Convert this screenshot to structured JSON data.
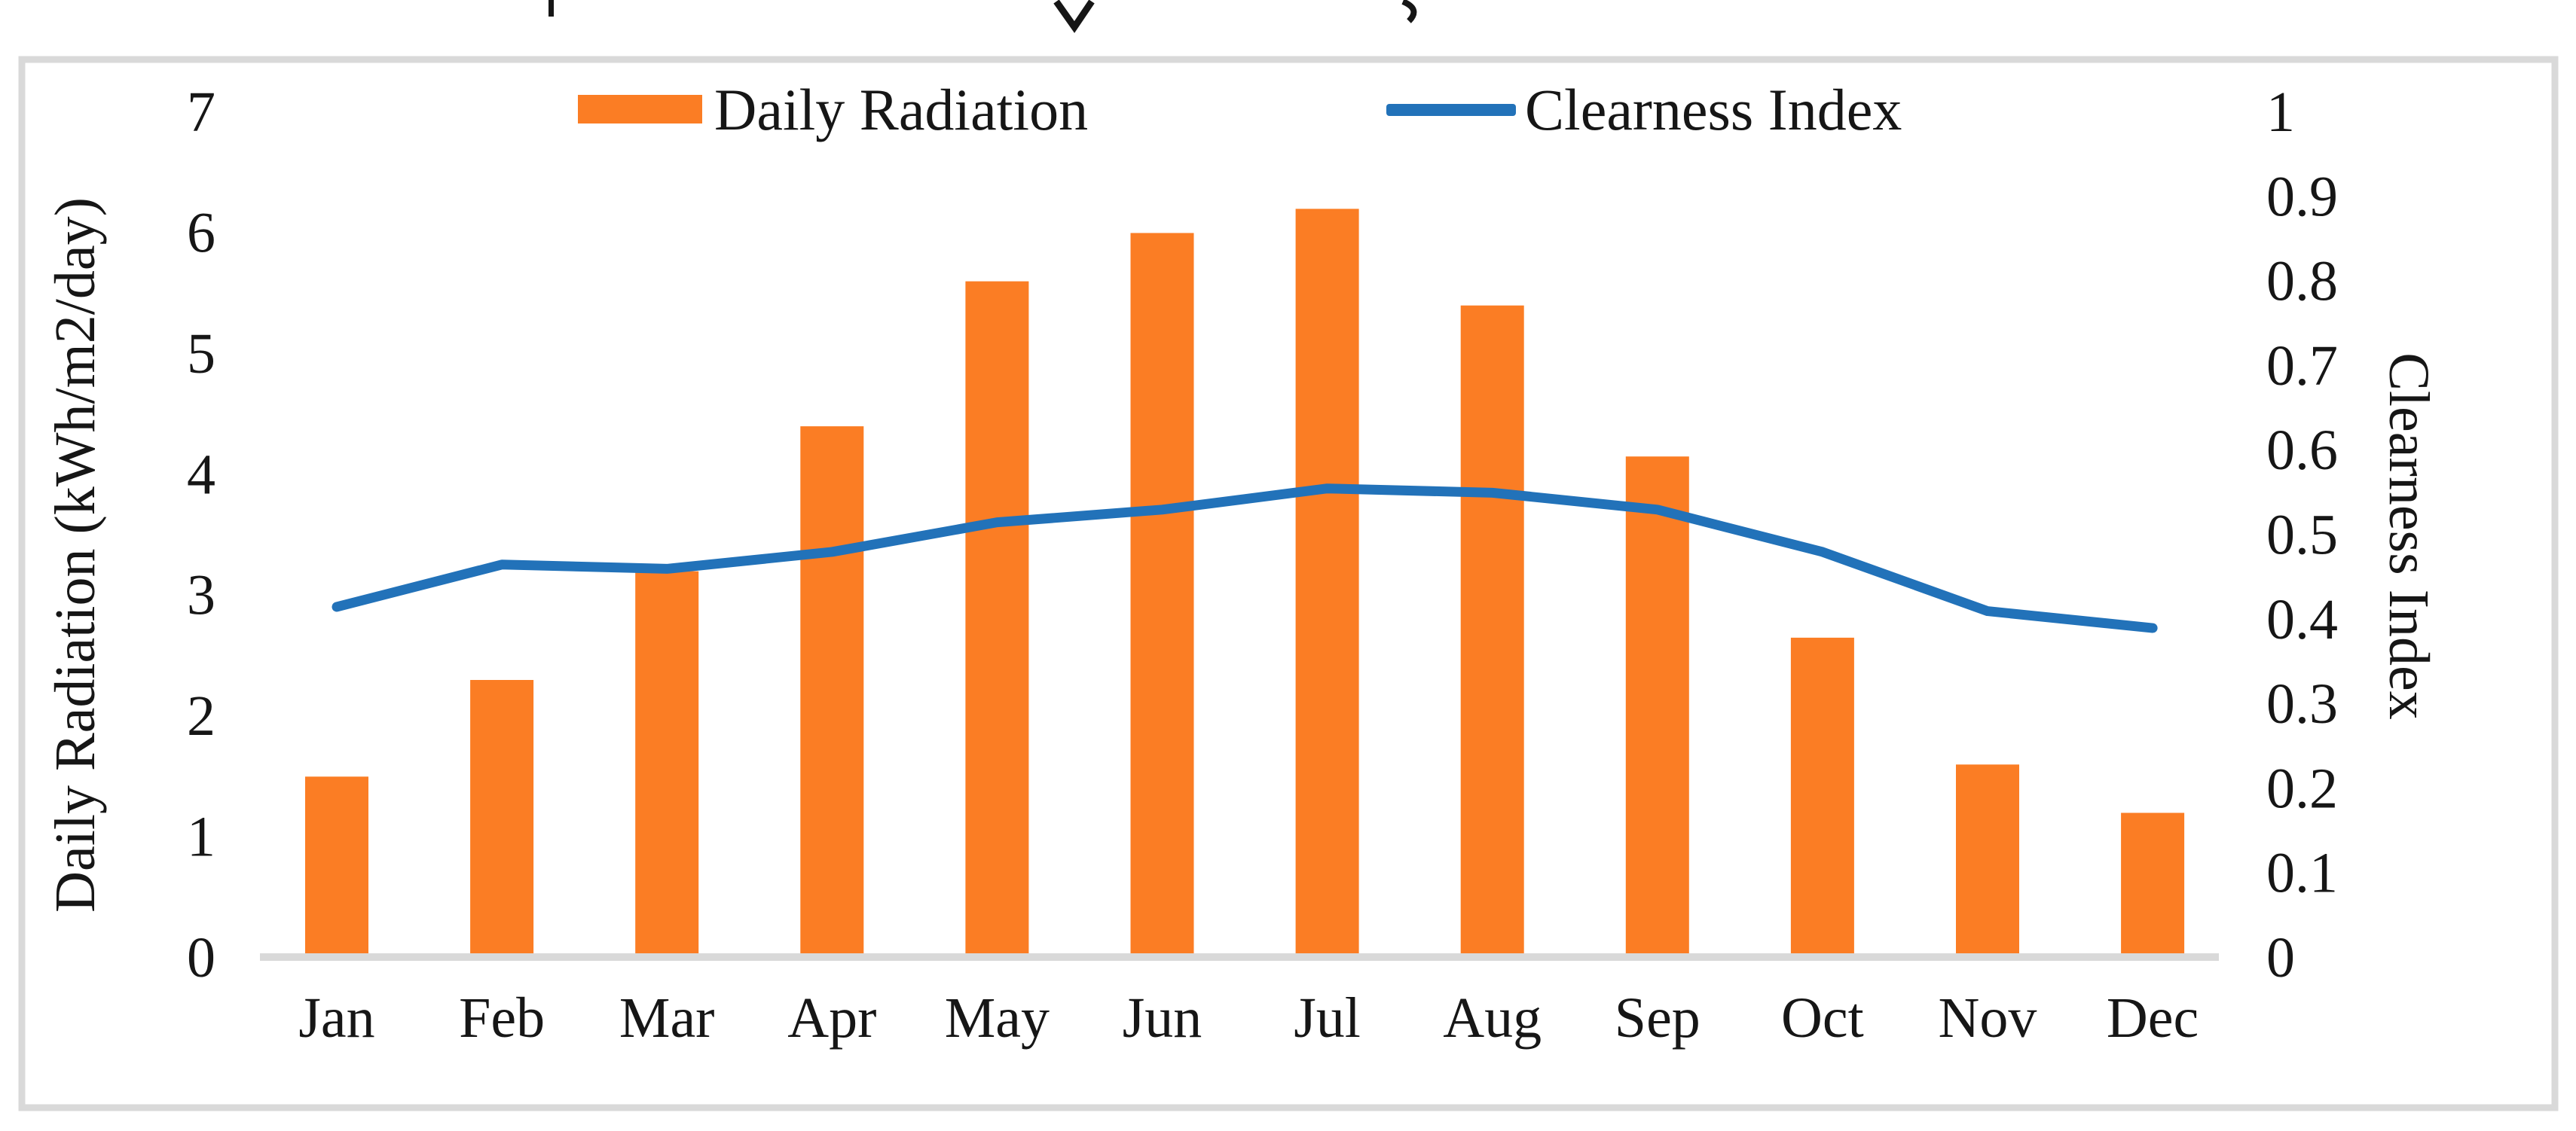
{
  "colors": {
    "bar": "#FB7D24",
    "line": "#2272B9",
    "frame": "#D9D9D9",
    "axis_line": "#D9D9D9",
    "text": "#161616"
  },
  "chart_data": {
    "type": "bar",
    "subtype": "combo-bar-line-dual-axis",
    "title": "",
    "categories": [
      "Jan",
      "Feb",
      "Mar",
      "Apr",
      "May",
      "Jun",
      "Jul",
      "Aug",
      "Sep",
      "Oct",
      "Nov",
      "Dec"
    ],
    "series": [
      {
        "name": "Daily Radiation",
        "type": "bar",
        "axis": "left",
        "color": "#FB7D24",
        "values": [
          1.5,
          2.3,
          3.2,
          4.4,
          5.6,
          6.0,
          6.2,
          5.4,
          4.15,
          2.65,
          1.6,
          1.2
        ]
      },
      {
        "name": "Clearness Index",
        "type": "line",
        "axis": "right",
        "color": "#2272B9",
        "values": [
          0.415,
          0.465,
          0.46,
          0.48,
          0.515,
          0.53,
          0.555,
          0.55,
          0.53,
          0.48,
          0.41,
          0.39
        ]
      }
    ],
    "left_axis": {
      "title": "Daily Radiation (kWh/m2/day)",
      "min": 0,
      "max": 7,
      "tick_step": 1,
      "tick_labels": [
        "7",
        "6",
        "5",
        "4",
        "3",
        "2",
        "1",
        "0"
      ]
    },
    "right_axis": {
      "title": "Clearness Index",
      "min": 0,
      "max": 1,
      "tick_step": 0.1,
      "tick_labels": [
        "1",
        "0.9",
        "0.8",
        "0.7",
        "0.6",
        "0.5",
        "0.4",
        "0.3",
        "0.2",
        "0.1",
        "0"
      ]
    },
    "grid": false,
    "legend_position": "top-center"
  }
}
